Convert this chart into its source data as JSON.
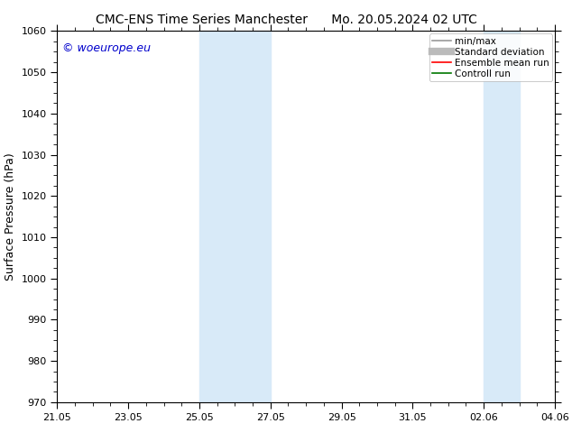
{
  "title_left": "CMC-ENS Time Series Manchester",
  "title_right": "Mo. 20.05.2024 02 UTC",
  "ylabel": "Surface Pressure (hPa)",
  "ylim": [
    970,
    1060
  ],
  "yticks": [
    970,
    980,
    990,
    1000,
    1010,
    1020,
    1030,
    1040,
    1050,
    1060
  ],
  "xtick_labels": [
    "21.05",
    "23.05",
    "25.05",
    "27.05",
    "29.05",
    "31.05",
    "02.06",
    "04.06"
  ],
  "xtick_positions": [
    0,
    2,
    4,
    6,
    8,
    10,
    12,
    14
  ],
  "xlim": [
    0,
    14
  ],
  "shaded_bands": [
    {
      "xmin": 4.0,
      "xmax": 6.0
    },
    {
      "xmin": 12.0,
      "xmax": 13.0
    }
  ],
  "band_color": "#d8eaf8",
  "background_color": "#ffffff",
  "plot_bg_color": "#ffffff",
  "watermark": "© woeurope.eu",
  "watermark_color": "#0000cc",
  "legend_items": [
    {
      "label": "min/max",
      "color": "#999999",
      "lw": 1.2
    },
    {
      "label": "Standard deviation",
      "color": "#bbbbbb",
      "lw": 6
    },
    {
      "label": "Ensemble mean run",
      "color": "#ff0000",
      "lw": 1.2
    },
    {
      "label": "Controll run",
      "color": "#007700",
      "lw": 1.2
    }
  ],
  "title_fontsize": 10,
  "tick_fontsize": 8,
  "ylabel_fontsize": 9,
  "watermark_fontsize": 9,
  "legend_fontsize": 7.5
}
